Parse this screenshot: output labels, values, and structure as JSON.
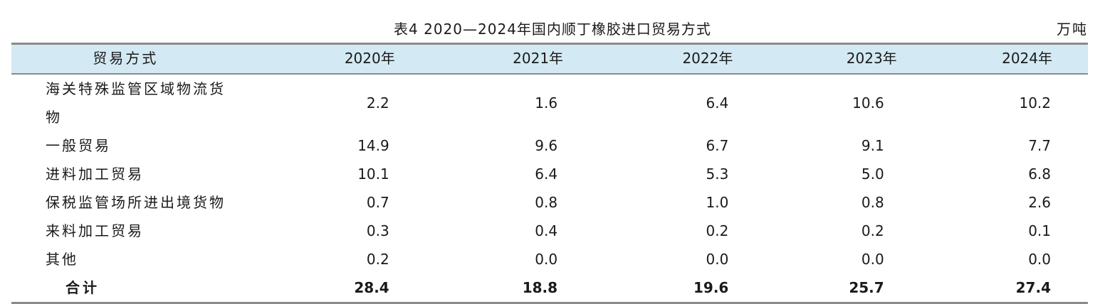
{
  "caption": "表4  2020—2024年国内顺丁橡胶进口贸易方式",
  "unit": "万吨",
  "header": [
    "贸易方式",
    "2020年",
    "2021年",
    "2022年",
    "2023年",
    "2024年"
  ],
  "rows": [
    {
      "label": "海关特殊监管区域物流货物",
      "values": [
        "2.2",
        "1.6",
        "6.4",
        "10.6",
        "10.2"
      ]
    },
    {
      "label": "一般贸易",
      "values": [
        "14.9",
        "9.6",
        "6.7",
        "9.1",
        "7.7"
      ]
    },
    {
      "label": "进料加工贸易",
      "values": [
        "10.1",
        "6.4",
        "5.3",
        "5.0",
        "6.8"
      ]
    },
    {
      "label": "保税监管场所进出境货物",
      "values": [
        "0.7",
        "0.8",
        "1.0",
        "0.8",
        "2.6"
      ]
    },
    {
      "label": "来料加工贸易",
      "values": [
        "0.3",
        "0.4",
        "0.2",
        "0.2",
        "0.1"
      ]
    },
    {
      "label": "其他",
      "values": [
        "0.2",
        "0.0",
        "0.0",
        "0.0",
        "0.0"
      ]
    }
  ],
  "total": {
    "label": "合计",
    "values": [
      "28.4",
      "18.8",
      "19.6",
      "25.7",
      "27.4"
    ]
  },
  "colors": {
    "header_bg": "#d3e9f3",
    "rule": "#8a8a8a"
  }
}
